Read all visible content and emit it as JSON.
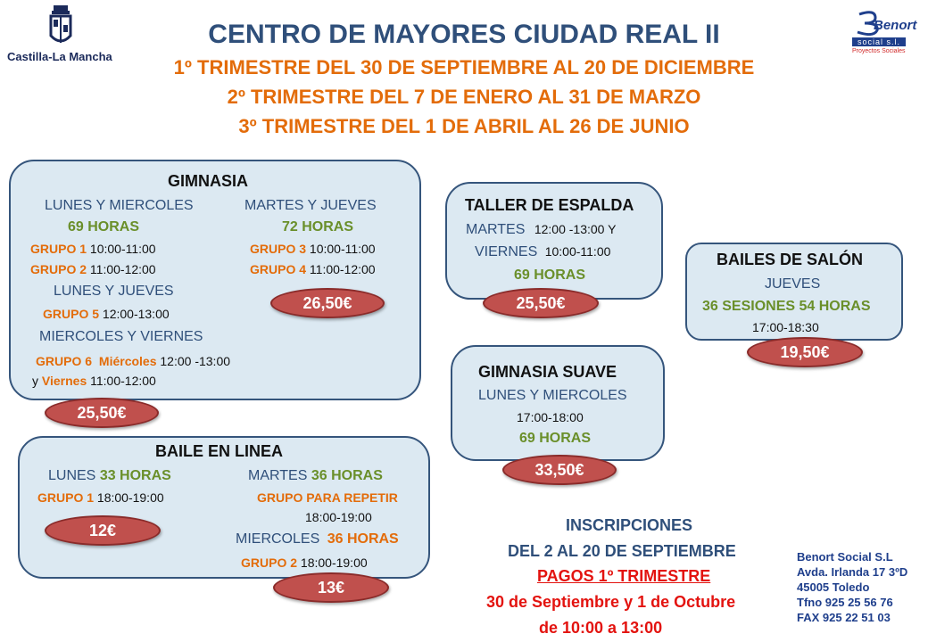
{
  "header": {
    "logo_text": "Castilla-La Mancha",
    "brand": {
      "name": "Benort",
      "sub": "social s.l.",
      "tag": "Proyectos Sociales"
    },
    "title": "CENTRO DE MAYORES CIUDAD REAL II",
    "trimestre1": "1º TRIMESTRE DEL 30 DE SEPTIEMBRE AL 20 DE DICIEMBRE",
    "trimestre2": "2º TRIMESTRE DEL 7 DE ENERO AL 31 DE MARZO",
    "trimestre3": "3º TRIMESTRE DEL 1 DE ABRIL AL 26 DE JUNIO"
  },
  "gimnasia": {
    "title": "GIMNASIA",
    "col1_days": "LUNES Y MIERCOLES",
    "col1_hours": "69 HORAS",
    "g1_label": "GRUPO 1",
    "g1_time": "10:00-11:00",
    "g2_label": "GRUPO 2",
    "g2_time": "11:00-12:00",
    "col2_days": "MARTES Y JUEVES",
    "col2_hours": "72 HORAS",
    "g3_label": "GRUPO 3",
    "g3_time": "10:00-11:00",
    "g4_label": "GRUPO 4",
    "g4_time": "11:00-12:00",
    "price2": "26,50€",
    "lj_days": "LUNES Y JUEVES",
    "g5_label": "GRUPO 5",
    "g5_time": "12:00-13:00",
    "mv_days": "MIERCOLES Y VIERNES",
    "g6_label": "GRUPO 6",
    "g6_day1": "Miércoles",
    "g6_time1": "12:00 -13:00",
    "g6_y": "y",
    "g6_day2": "Viernes",
    "g6_time2": "11:00-12:00",
    "price1": "25,50€"
  },
  "baile_linea": {
    "title": "BAILE EN LINEA",
    "lunes": "LUNES",
    "lunes_hours": "33 HORAS",
    "g1_label": "GRUPO 1",
    "g1_time": "18:00-19:00",
    "martes": "MARTES",
    "martes_hours": "36 HORAS",
    "repetir": "GRUPO PARA REPETIR",
    "repetir_time": "18:00-19:00",
    "miercoles": "MIERCOLES",
    "miercoles_hours": "36 HORAS",
    "g2_label": "GRUPO 2",
    "g2_time": "18:00-19:00",
    "price1": "12€",
    "price2": "13€"
  },
  "espalda": {
    "title": "TALLER DE ESPALDA",
    "martes": "MARTES",
    "martes_time": "12:00 -13:00 Y",
    "viernes": "VIERNES",
    "viernes_time": "10:00-11:00",
    "hours": "69 HORAS",
    "price": "25,50€"
  },
  "suave": {
    "title": "GIMNASIA SUAVE",
    "days": "LUNES Y MIERCOLES",
    "time": "17:00-18:00",
    "hours": "69 HORAS",
    "price": "33,50€"
  },
  "salon": {
    "title": "BAILES DE SALÓN",
    "days": "JUEVES",
    "sessions": "36 SESIONES 54 HORAS",
    "time": "17:00-18:30",
    "price": "19,50€"
  },
  "inscripciones": {
    "title": "INSCRIPCIONES",
    "dates": "DEL 2 AL 20 DE SEPTIEMBRE",
    "pagos": "PAGOS 1º TRIMESTRE",
    "pagos_dates": "30 de Septiembre y 1 de Octubre",
    "pagos_time": "de 10:00 a 13:00"
  },
  "contact": {
    "company": "Benort Social S.L",
    "address": "Avda. Irlanda 17 3ºD",
    "city": "45005 Toledo",
    "phone": "Tfno 925 25 56 76",
    "fax": "FAX 925 22 51 03"
  }
}
